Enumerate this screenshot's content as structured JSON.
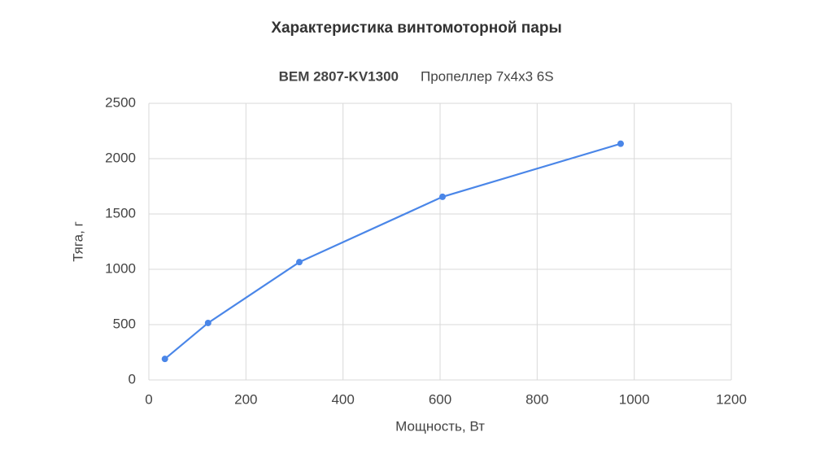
{
  "chart_data": {
    "type": "line",
    "title": "Характеристика винтомоторной пары",
    "subtitle": [
      "BEM 2807-KV1300",
      "Пропеллер 7x4x3 6S"
    ],
    "x_label": "Мощность, Вт",
    "y_label": "Тяга, г",
    "x": [
      33,
      122,
      310,
      605,
      972
    ],
    "series": [
      {
        "name": "Тяга",
        "color": "#4a86e8",
        "values": [
          190,
          515,
          1065,
          1655,
          2135
        ]
      }
    ],
    "xlim": [
      0,
      1200
    ],
    "xticks": [
      0,
      200,
      400,
      600,
      800,
      1000,
      1200
    ],
    "ylim": [
      0,
      2500
    ],
    "yticks": [
      0,
      500,
      1000,
      1500,
      2000,
      2500
    ],
    "grid": true
  }
}
